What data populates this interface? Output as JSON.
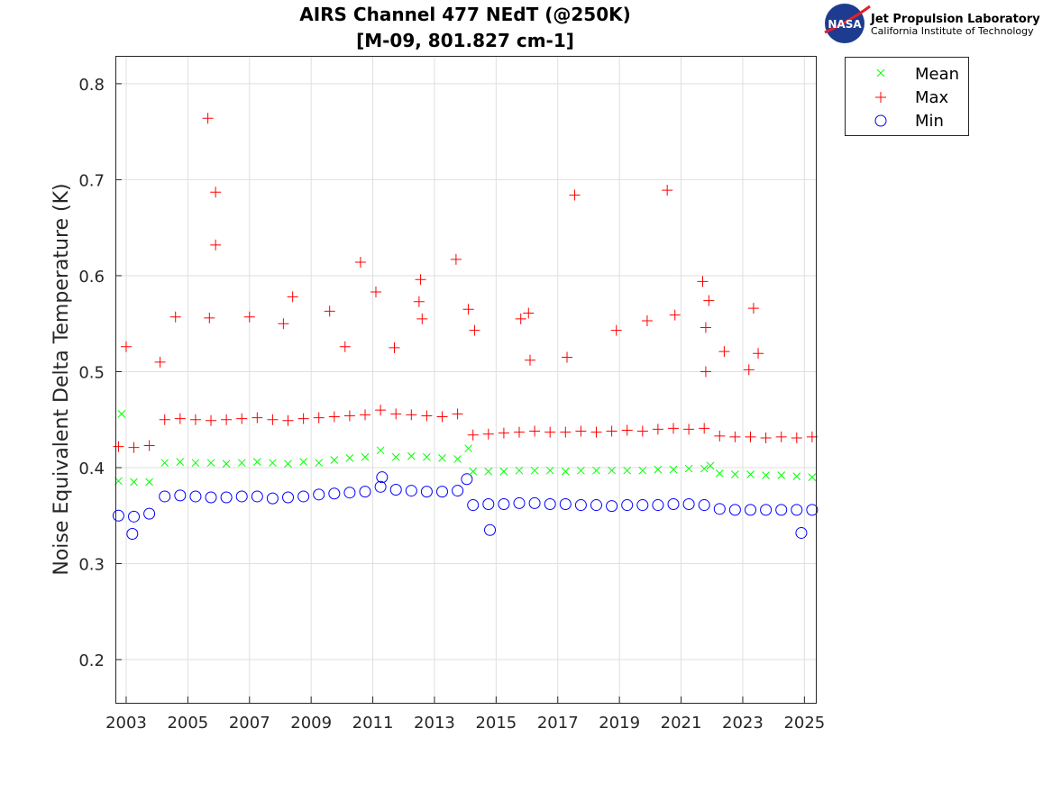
{
  "chart_data": {
    "type": "scatter",
    "title": [
      "AIRS Channel 477 NEdT (@250K)",
      "[M-09, 801.827 cm-1]"
    ],
    "xlabel": "",
    "ylabel": "Noise Equivalent Delta Temperature (K)",
    "xlim": [
      2002.65,
      2025.37
    ],
    "ylim": [
      0.155,
      0.829
    ],
    "xticks": [
      2003,
      2005,
      2007,
      2009,
      2011,
      2013,
      2015,
      2017,
      2019,
      2021,
      2023,
      2025
    ],
    "yticks": [
      0.2,
      0.3,
      0.4,
      0.5,
      0.6,
      0.7,
      0.8
    ],
    "ytick_labels": [
      "0.2",
      "0.3",
      "0.4",
      "0.5",
      "0.6",
      "0.7",
      "0.8"
    ],
    "grid": true,
    "legend_placement": "outside-top-right",
    "x": [
      2002.75,
      2003.25,
      2003.75,
      2004.25,
      2004.75,
      2005.25,
      2005.75,
      2006.25,
      2006.75,
      2007.25,
      2007.75,
      2008.25,
      2008.75,
      2009.25,
      2009.75,
      2010.25,
      2010.75,
      2011.25,
      2011.75,
      2012.25,
      2012.75,
      2013.25,
      2013.75,
      2014.25,
      2014.75,
      2015.25,
      2015.75,
      2016.25,
      2016.75,
      2017.25,
      2017.75,
      2018.25,
      2018.75,
      2019.25,
      2019.75,
      2020.25,
      2020.75,
      2021.25,
      2021.75,
      2022.25,
      2022.75,
      2023.25,
      2023.75,
      2024.25,
      2024.75,
      2025.25
    ],
    "series": [
      {
        "name": "Mean",
        "marker": "x",
        "color": "#00ff00",
        "values": [
          0.386,
          0.385,
          0.385,
          0.405,
          0.406,
          0.405,
          0.405,
          0.404,
          0.405,
          0.406,
          0.405,
          0.404,
          0.406,
          0.405,
          0.408,
          0.41,
          0.411,
          0.418,
          0.411,
          0.412,
          0.411,
          0.41,
          0.409,
          0.396,
          0.396,
          0.396,
          0.397,
          0.397,
          0.397,
          0.396,
          0.397,
          0.397,
          0.397,
          0.397,
          0.397,
          0.398,
          0.398,
          0.399,
          0.399,
          0.394,
          0.393,
          0.393,
          0.392,
          0.392,
          0.391,
          0.39
        ],
        "outliers": [
          [
            2002.85,
            0.456
          ],
          [
            2021.95,
            0.402
          ],
          [
            2014.1,
            0.42
          ]
        ]
      },
      {
        "name": "Max",
        "marker": "+",
        "color": "#ff0000",
        "values": [
          0.422,
          0.421,
          0.423,
          0.45,
          0.451,
          0.45,
          0.449,
          0.45,
          0.451,
          0.452,
          0.45,
          0.449,
          0.451,
          0.452,
          0.453,
          0.454,
          0.455,
          0.46,
          0.456,
          0.455,
          0.454,
          0.453,
          0.456,
          0.434,
          0.435,
          0.436,
          0.437,
          0.438,
          0.437,
          0.437,
          0.438,
          0.437,
          0.438,
          0.439,
          0.438,
          0.44,
          0.441,
          0.44,
          0.441,
          0.433,
          0.432,
          0.432,
          0.431,
          0.432,
          0.431,
          0.432
        ],
        "outliers": [
          [
            2005.65,
            0.764
          ],
          [
            2005.9,
            0.687
          ],
          [
            2005.9,
            0.632
          ],
          [
            2010.6,
            0.614
          ],
          [
            2011.1,
            0.583
          ],
          [
            2012.55,
            0.596
          ],
          [
            2013.7,
            0.617
          ],
          [
            2017.55,
            0.684
          ],
          [
            2020.55,
            0.689
          ],
          [
            2021.7,
            0.594
          ],
          [
            2021.9,
            0.574
          ],
          [
            2023.35,
            0.566
          ],
          [
            2008.4,
            0.578
          ],
          [
            2009.6,
            0.563
          ],
          [
            2016.05,
            0.561
          ],
          [
            2015.8,
            0.555
          ],
          [
            2018.9,
            0.543
          ],
          [
            2019.9,
            0.553
          ],
          [
            2020.8,
            0.559
          ],
          [
            2014.1,
            0.565
          ],
          [
            2003.0,
            0.526
          ],
          [
            2004.6,
            0.557
          ],
          [
            2005.7,
            0.556
          ],
          [
            2007.0,
            0.557
          ],
          [
            2012.5,
            0.573
          ],
          [
            2012.6,
            0.555
          ],
          [
            2014.3,
            0.543
          ],
          [
            2016.1,
            0.512
          ],
          [
            2017.3,
            0.515
          ],
          [
            2021.8,
            0.546
          ],
          [
            2022.4,
            0.521
          ],
          [
            2023.5,
            0.519
          ],
          [
            2023.2,
            0.502
          ],
          [
            2021.8,
            0.5
          ],
          [
            2008.1,
            0.55
          ],
          [
            2011.7,
            0.525
          ],
          [
            2004.1,
            0.51
          ],
          [
            2010.1,
            0.526
          ]
        ]
      },
      {
        "name": "Min",
        "marker": "o",
        "color": "#0000ff",
        "values": [
          0.35,
          0.349,
          0.352,
          0.37,
          0.371,
          0.37,
          0.369,
          0.369,
          0.37,
          0.37,
          0.368,
          0.369,
          0.37,
          0.372,
          0.373,
          0.374,
          0.375,
          0.38,
          0.377,
          0.376,
          0.375,
          0.375,
          0.376,
          0.361,
          0.362,
          0.362,
          0.363,
          0.363,
          0.362,
          0.362,
          0.361,
          0.361,
          0.36,
          0.361,
          0.361,
          0.361,
          0.362,
          0.362,
          0.361,
          0.357,
          0.356,
          0.356,
          0.356,
          0.356,
          0.356,
          0.356
        ],
        "outliers": [
          [
            2003.2,
            0.331
          ],
          [
            2014.8,
            0.335
          ],
          [
            2024.9,
            0.332
          ],
          [
            2014.05,
            0.388
          ],
          [
            2011.3,
            0.39
          ]
        ]
      }
    ]
  },
  "logo": {
    "org": "Jet Propulsion Laboratory",
    "sub": "California Institute of Technology",
    "badge": "NASA"
  }
}
